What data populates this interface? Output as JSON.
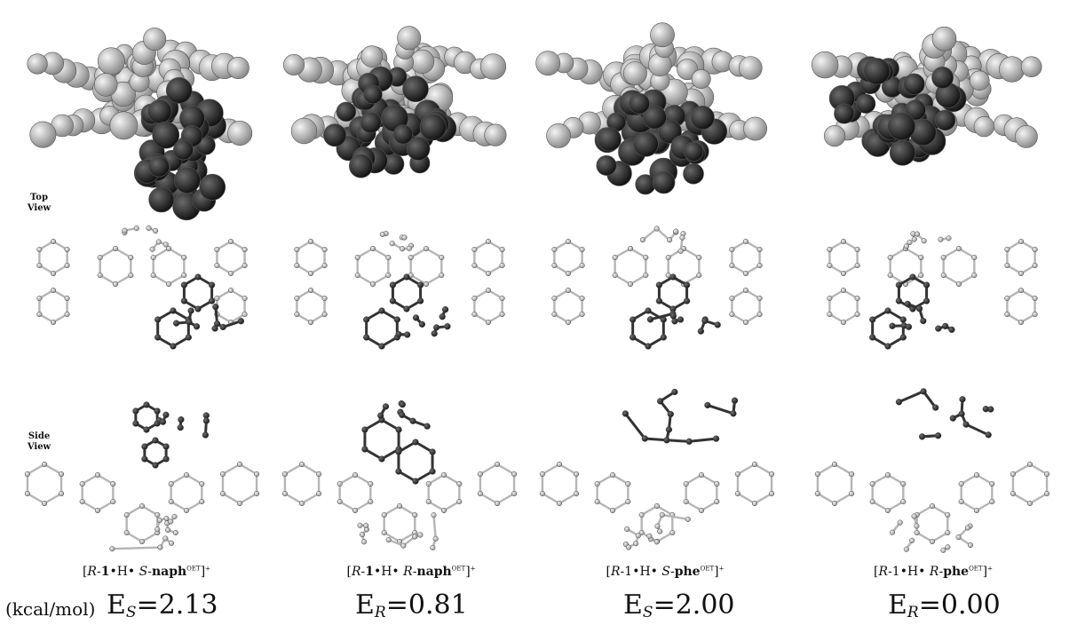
{
  "row_labels": {
    "top": "Top\nView",
    "side": "Side\nView"
  },
  "unit_label": "(kcal/mol)",
  "panels": [
    {
      "caption": {
        "pre": "[",
        "chir": "R",
        "mid": "-",
        "bold1": "1",
        "dot1": "•H• ",
        "chir2": "S",
        "dash": "-",
        "bold2": "naph",
        "sup": "OET",
        "post": "]",
        "charge": "+"
      },
      "energy": {
        "symbol": "E",
        "sub": "S",
        "eq": "=",
        "value": "2.13"
      }
    },
    {
      "caption": {
        "pre": "[",
        "chir": "R",
        "mid": "-",
        "bold1": "1",
        "dot1": "•H• ",
        "chir2": "R",
        "dash": "-",
        "bold2": "naph",
        "sup": "OET",
        "post": "]",
        "charge": "+"
      },
      "energy": {
        "symbol": "E",
        "sub": "R",
        "eq": "=",
        "value": "0.81"
      }
    },
    {
      "caption": {
        "pre": "[",
        "chir": "R",
        "mid": "-",
        "bold1": "1",
        "dot1": "•H• ",
        "chir2": "S",
        "dash": "-",
        "bold2": "phe",
        "sup": "OET",
        "post": "]",
        "charge": "+"
      },
      "energy": {
        "symbol": "E",
        "sub": "S",
        "eq": "=",
        "value": "2.00"
      }
    },
    {
      "caption": {
        "pre": "[",
        "chir": "R",
        "mid": "-",
        "bold1": "1",
        "dot1": "•H• ",
        "chir2": "R",
        "dash": "-",
        "bold2": "phe",
        "sup": "OET",
        "post": "]",
        "charge": "+"
      },
      "energy": {
        "symbol": "E",
        "sub": "R",
        "eq": "=",
        "value": "0.00"
      }
    }
  ],
  "colors": {
    "host_light": "#c9c9c9",
    "guest_dark": "#2f2f2f",
    "bond_light": "#b5b5b5",
    "bond_dark": "#333333"
  }
}
